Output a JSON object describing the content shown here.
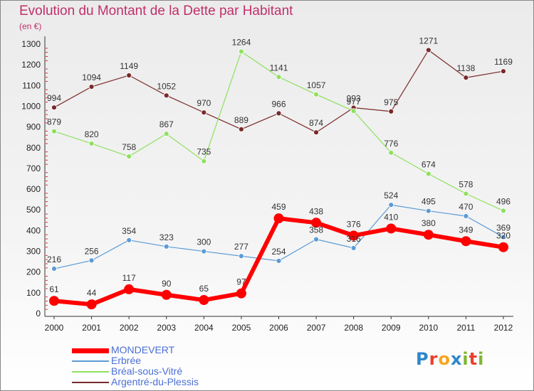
{
  "header": {
    "title": "Evolution du Montant de la Dette par Habitant",
    "subtitle": "(en €)"
  },
  "logo": {
    "letters": [
      "P",
      "r",
      "o",
      "x",
      "i",
      "t",
      "i"
    ],
    "colors": [
      "#2f86c8",
      "#e8412c",
      "#f5a623",
      "#2f86c8",
      "#7cb82f",
      "#e8412c",
      "#7cb82f"
    ]
  },
  "chart_data": {
    "type": "line",
    "title": "Evolution du Montant de la Dette par Habitant",
    "subtitle": "(en €)",
    "x": [
      "2000",
      "2001",
      "2002",
      "2003",
      "2004",
      "2005",
      "2006",
      "2007",
      "2008",
      "2009",
      "2010",
      "2011",
      "2012"
    ],
    "y_ticks": [
      "0",
      "100",
      "200",
      "300",
      "400",
      "500",
      "600",
      "700",
      "800",
      "900",
      "1000",
      "1100",
      "1200",
      "1300"
    ],
    "ylim": [
      0,
      1300
    ],
    "grid": false,
    "legend_position": "bottom-left",
    "series": [
      {
        "name": "MONDEVERT",
        "color": "#ff0000",
        "values": [
          61,
          44,
          117,
          90,
          65,
          97,
          459,
          438,
          376,
          410,
          380,
          349,
          320
        ],
        "labels": [
          "61",
          "44",
          "117",
          "90",
          "65",
          "97",
          "459",
          "438",
          "376",
          "410",
          "380",
          "349",
          "320"
        ]
      },
      {
        "name": "Erbrée",
        "color": "#5b9bd5",
        "values": [
          216,
          256,
          354,
          323,
          300,
          277,
          254,
          358,
          316,
          524,
          495,
          470,
          369
        ],
        "labels": [
          "216",
          "256",
          "354",
          "323",
          "300",
          "277",
          "254",
          "358",
          "316",
          "524",
          "495",
          "470",
          "369"
        ]
      },
      {
        "name": "Bréal-sous-Vitré",
        "color": "#8fe060",
        "values": [
          879,
          820,
          758,
          867,
          735,
          1264,
          1141,
          1057,
          977,
          776,
          674,
          578,
          496
        ],
        "labels": [
          "879",
          "820",
          "758",
          "867",
          "735",
          "1264",
          "1141",
          "1057",
          "977",
          "776",
          "674",
          "578",
          "496"
        ]
      },
      {
        "name": "Argentré-du-Plessis",
        "color": "#7a2a2a",
        "values": [
          994,
          1094,
          1149,
          1052,
          970,
          889,
          966,
          874,
          993,
          975,
          1271,
          1138,
          1169
        ],
        "labels": [
          "994",
          "1094",
          "1149",
          "1052",
          "970",
          "889",
          "966",
          "874",
          "993",
          "975",
          "1271",
          "1138",
          "1169"
        ]
      }
    ]
  }
}
